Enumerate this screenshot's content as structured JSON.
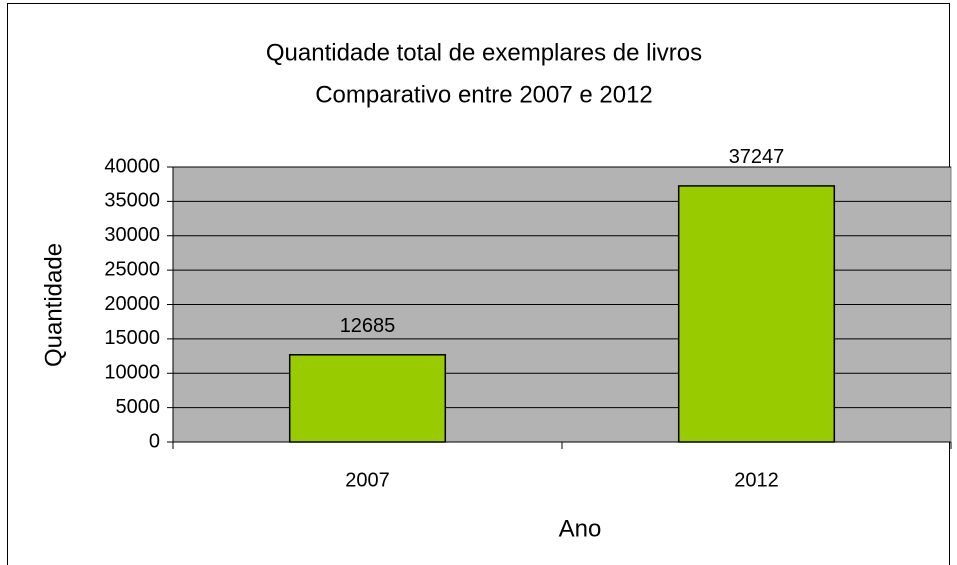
{
  "chart_data": {
    "type": "bar",
    "title": [
      "Quantidade total de exemplares de livros",
      "Comparativo entre 2007 e 2012"
    ],
    "x_label": "Ano",
    "y_label": "Quantidade",
    "categories": [
      "2007",
      "2012"
    ],
    "values": [
      12685,
      37247
    ],
    "color": "#99cc00",
    "ylim": [
      0,
      40000
    ],
    "yticks": [
      0,
      5000,
      10000,
      15000,
      20000,
      25000,
      30000,
      35000,
      40000
    ],
    "grid": true,
    "plot_background": "#b3b3b3"
  }
}
